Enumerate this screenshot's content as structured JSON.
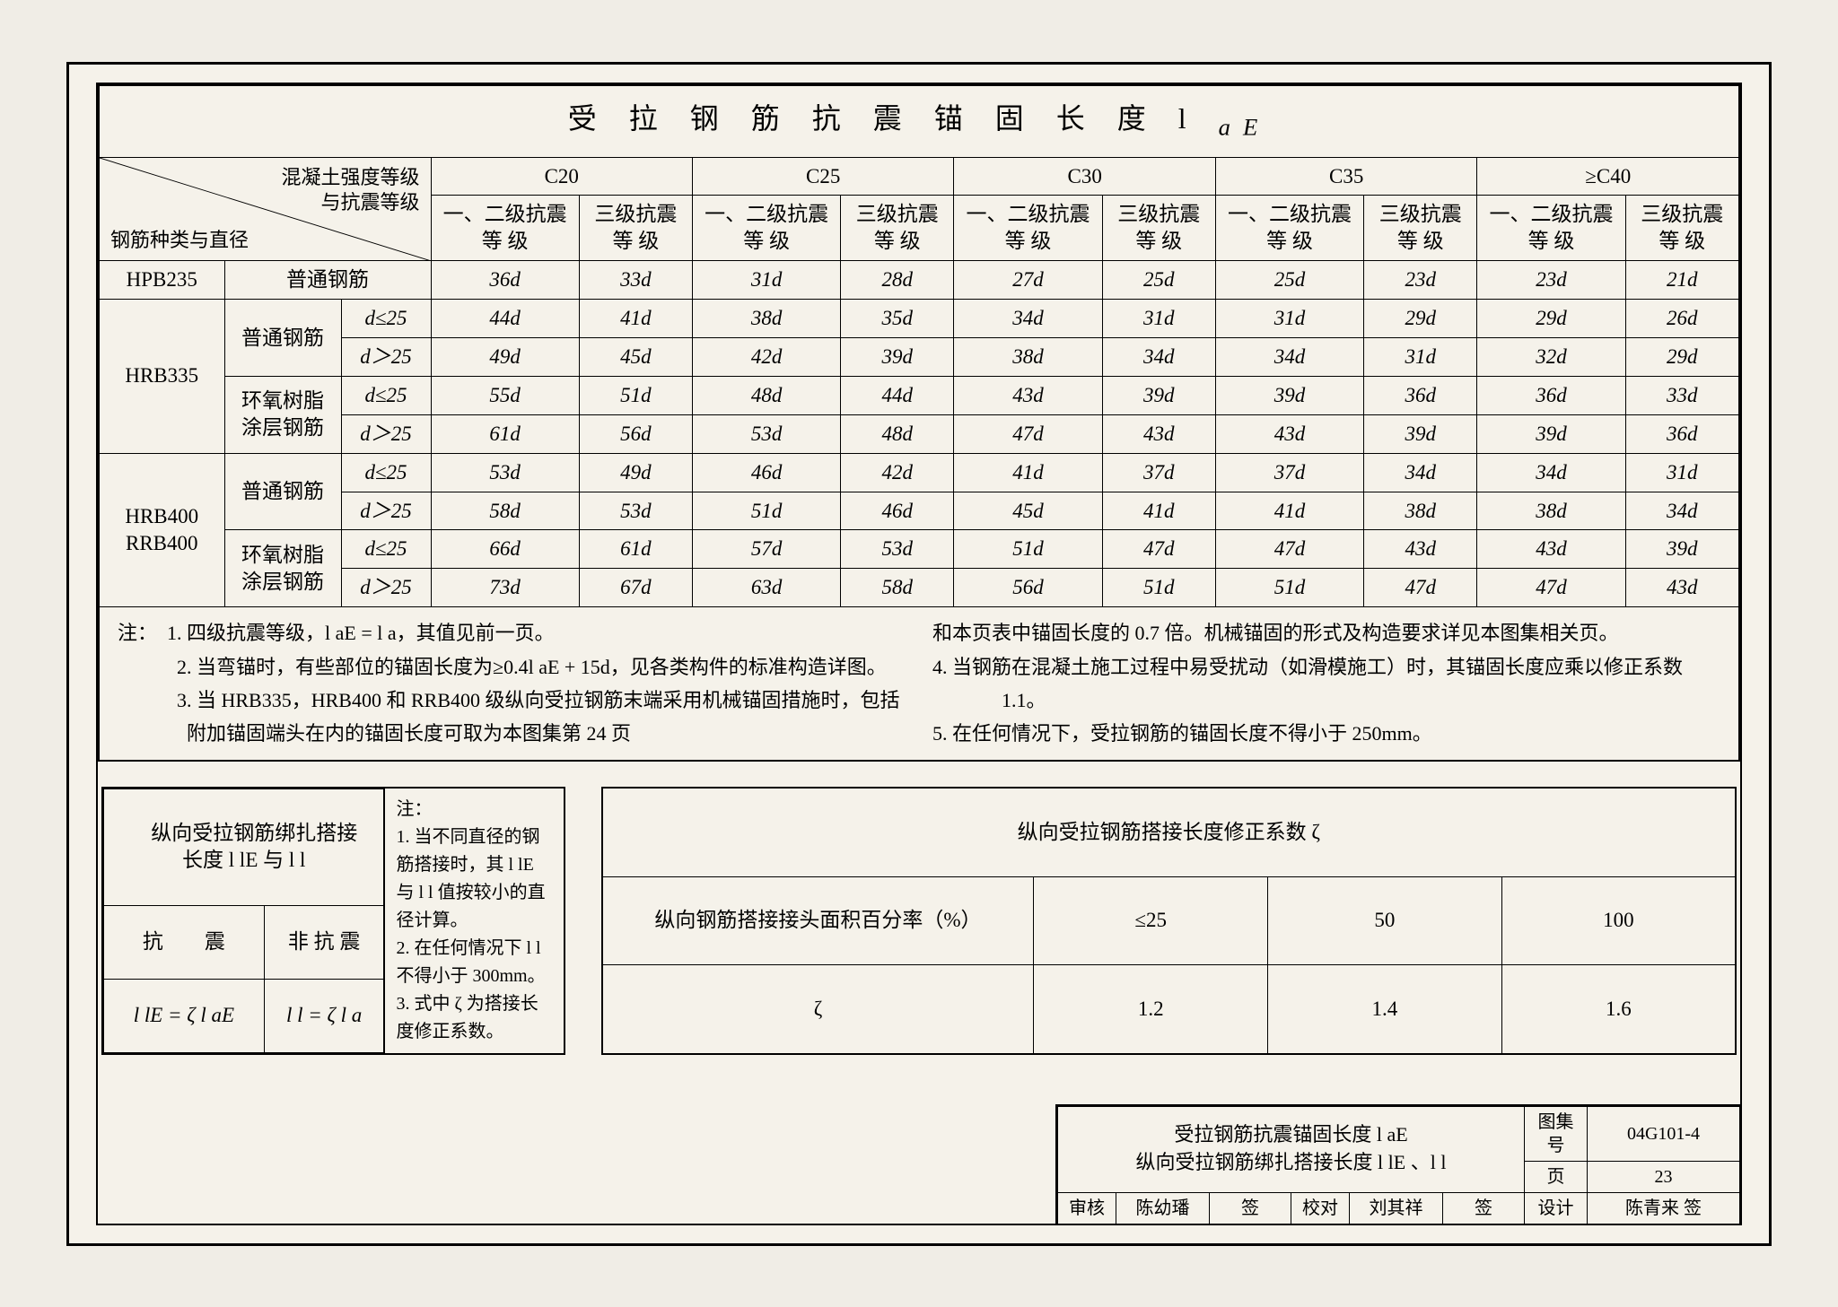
{
  "main_table": {
    "title": "受 拉 钢 筋 抗 震 锚 固 长 度  l",
    "title_sub": "aE",
    "header": {
      "diag_top": "混凝土强度等级\n与抗震等级",
      "diag_bottom": "钢筋种类与直径",
      "grades": [
        "C20",
        "C25",
        "C30",
        "C35",
        "≥C40"
      ],
      "sub1": "一、二级抗震 等 级",
      "sub2": "三级抗震等 级"
    },
    "row_groups": [
      {
        "name": "HPB235",
        "types": [
          {
            "label": "普通钢筋",
            "rows": [
              {
                "dia": null,
                "vals": [
                  "36d",
                  "33d",
                  "31d",
                  "28d",
                  "27d",
                  "25d",
                  "25d",
                  "23d",
                  "23d",
                  "21d"
                ]
              }
            ]
          }
        ]
      },
      {
        "name": "HRB335",
        "types": [
          {
            "label": "普通钢筋",
            "rows": [
              {
                "dia": "d≤25",
                "vals": [
                  "44d",
                  "41d",
                  "38d",
                  "35d",
                  "34d",
                  "31d",
                  "31d",
                  "29d",
                  "29d",
                  "26d"
                ]
              },
              {
                "dia": "d＞25",
                "vals": [
                  "49d",
                  "45d",
                  "42d",
                  "39d",
                  "38d",
                  "34d",
                  "34d",
                  "31d",
                  "32d",
                  "29d"
                ]
              }
            ]
          },
          {
            "label": "环氧树脂涂层钢筋",
            "rows": [
              {
                "dia": "d≤25",
                "vals": [
                  "55d",
                  "51d",
                  "48d",
                  "44d",
                  "43d",
                  "39d",
                  "39d",
                  "36d",
                  "36d",
                  "33d"
                ]
              },
              {
                "dia": "d＞25",
                "vals": [
                  "61d",
                  "56d",
                  "53d",
                  "48d",
                  "47d",
                  "43d",
                  "43d",
                  "39d",
                  "39d",
                  "36d"
                ]
              }
            ]
          }
        ]
      },
      {
        "name": "HRB400\nRRB400",
        "types": [
          {
            "label": "普通钢筋",
            "rows": [
              {
                "dia": "d≤25",
                "vals": [
                  "53d",
                  "49d",
                  "46d",
                  "42d",
                  "41d",
                  "37d",
                  "37d",
                  "34d",
                  "34d",
                  "31d"
                ]
              },
              {
                "dia": "d＞25",
                "vals": [
                  "58d",
                  "53d",
                  "51d",
                  "46d",
                  "45d",
                  "41d",
                  "41d",
                  "38d",
                  "38d",
                  "34d"
                ]
              }
            ]
          },
          {
            "label": "环氧树脂涂层钢筋",
            "rows": [
              {
                "dia": "d≤25",
                "vals": [
                  "66d",
                  "61d",
                  "57d",
                  "53d",
                  "51d",
                  "47d",
                  "47d",
                  "43d",
                  "43d",
                  "39d"
                ]
              },
              {
                "dia": "d＞25",
                "vals": [
                  "73d",
                  "67d",
                  "63d",
                  "58d",
                  "56d",
                  "51d",
                  "51d",
                  "47d",
                  "47d",
                  "43d"
                ]
              }
            ]
          }
        ]
      }
    ],
    "notes_left": [
      "注：　1. 四级抗震等级，l aE = l a，其值见前一页。",
      "　　　2. 当弯锚时，有些部位的锚固长度为≥0.4l aE + 15d，见各类构件的标准构造详图。",
      "　　　3. 当 HRB335，HRB400 和 RRB400 级纵向受拉钢筋末端采用机械锚固措施时，包括附加锚固端头在内的锚固长度可取为本图集第 24 页"
    ],
    "notes_right": [
      "和本页表中锚固长度的 0.7 倍。机械锚固的形式及构造要求详见本图集相关页。",
      "4. 当钢筋在混凝土施工过程中易受扰动（如滑模施工）时，其锚固长度应乘以修正系数 1.1。",
      "5. 在任何情况下，受拉钢筋的锚固长度不得小于 250mm。"
    ]
  },
  "splice_table": {
    "title": "纵向受拉钢筋绑扎搭接长度 l lE 与 l l",
    "h1": "抗　　震",
    "h2": "非 抗 震",
    "f1": "l lE  = ζ l aE",
    "f2": "l l   = ζ l a",
    "notes": [
      "注：",
      "1. 当不同直径的钢筋搭接时，其 l lE 与 l l 值按较小的直径计算。",
      "2. 在任何情况下 l l 不得小于 300mm。",
      "3. 式中 ζ 为搭接长度修正系数。"
    ]
  },
  "zeta_table": {
    "title": "纵向受拉钢筋搭接长度修正系数 ζ",
    "row1_label": "纵向钢筋搭接接头面积百分率（%）",
    "row1": [
      "≤25",
      "50",
      "100"
    ],
    "row2_label": "ζ",
    "row2": [
      "1.2",
      "1.4",
      "1.6"
    ]
  },
  "title_block": {
    "line1": "受拉钢筋抗震锚固长度 l aE",
    "line2": "纵向受拉钢筋绑扎搭接长度 l lE 、l l",
    "set_label": "图集号",
    "set_no": "04G101-4",
    "review_label": "审核",
    "review_name": "陈幼璠",
    "check_label": "校对",
    "check_name": "刘其祥",
    "design_label": "设计",
    "design_name": "陈青来",
    "page_label": "页",
    "page_no": "23"
  }
}
